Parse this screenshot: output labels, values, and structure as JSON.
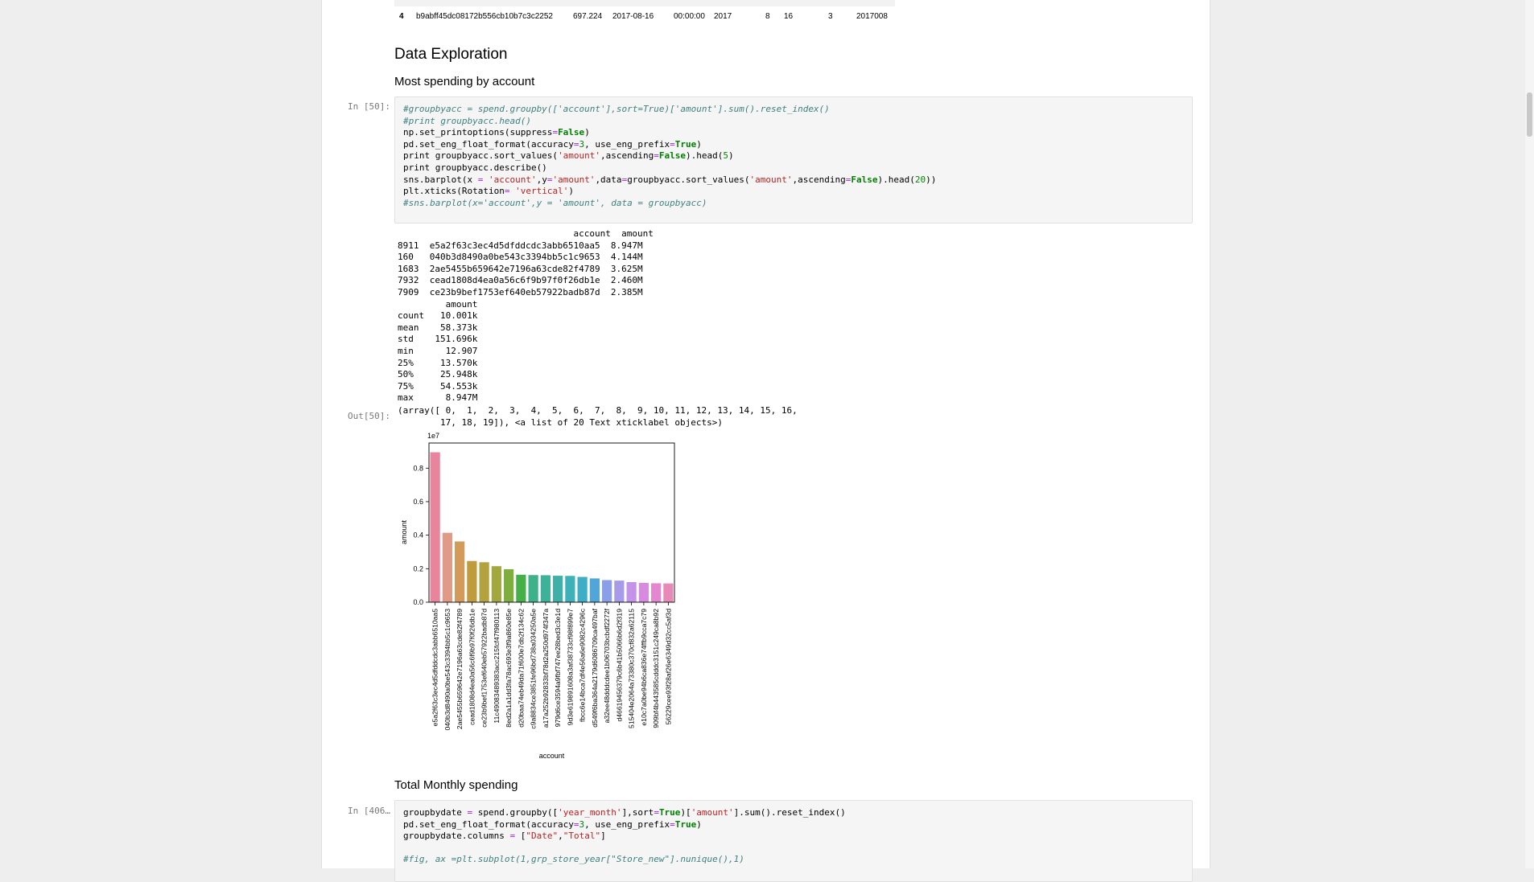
{
  "table_row": {
    "index": "4",
    "cells": [
      "b9abff45dc08172b556cb10b7c3c2252",
      "697.224",
      "2017-08-16",
      "00:00:00",
      "2017",
      "8",
      "16",
      "3",
      "2017008"
    ]
  },
  "headings": {
    "data_exploration": "Data Exploration",
    "most_spending": "Most spending by account",
    "total_monthly": "Total Monthly spending"
  },
  "cell1": {
    "in_prompt": "In [50]:",
    "out_prompt": "Out[50]:",
    "code": [
      {
        "parts": [
          {
            "t": "#groupbyacc = spend.groupby(['account'],sort=True)['amount'].sum().reset_index()",
            "c": "cm"
          }
        ]
      },
      {
        "parts": [
          {
            "t": "#print groupbyacc.head()",
            "c": "cm"
          }
        ]
      },
      {
        "parts": [
          {
            "t": "np.set_printoptions(suppress"
          },
          {
            "t": "=",
            "c": "op"
          },
          {
            "t": "False",
            "c": "kw"
          },
          {
            "t": ")"
          }
        ]
      },
      {
        "parts": [
          {
            "t": "pd.set_eng_float_format(accuracy"
          },
          {
            "t": "=",
            "c": "op"
          },
          {
            "t": "3",
            "c": "nu"
          },
          {
            "t": ", use_eng_prefix"
          },
          {
            "t": "=",
            "c": "op"
          },
          {
            "t": "True",
            "c": "kw"
          },
          {
            "t": ")"
          }
        ]
      },
      {
        "parts": [
          {
            "t": "print groupbyacc.sort_values("
          },
          {
            "t": "'amount'",
            "c": "st"
          },
          {
            "t": ",ascending"
          },
          {
            "t": "=",
            "c": "op"
          },
          {
            "t": "False",
            "c": "kw"
          },
          {
            "t": ").head("
          },
          {
            "t": "5",
            "c": "nu"
          },
          {
            "t": ")"
          }
        ]
      },
      {
        "parts": [
          {
            "t": "print groupbyacc.describe()"
          }
        ]
      },
      {
        "parts": [
          {
            "t": "sns.barplot(x "
          },
          {
            "t": "=",
            "c": "op"
          },
          {
            "t": " "
          },
          {
            "t": "'account'",
            "c": "st"
          },
          {
            "t": ",y"
          },
          {
            "t": "=",
            "c": "op"
          },
          {
            "t": "'amount'",
            "c": "st"
          },
          {
            "t": ",data"
          },
          {
            "t": "=",
            "c": "op"
          },
          {
            "t": "groupbyacc.sort_values("
          },
          {
            "t": "'amount'",
            "c": "st"
          },
          {
            "t": ",ascending"
          },
          {
            "t": "=",
            "c": "op"
          },
          {
            "t": "False",
            "c": "kw"
          },
          {
            "t": ").head("
          },
          {
            "t": "20",
            "c": "nu"
          },
          {
            "t": "))"
          }
        ]
      },
      {
        "parts": [
          {
            "t": "plt.xticks(Rotation"
          },
          {
            "t": "=",
            "c": "op"
          },
          {
            "t": " "
          },
          {
            "t": "'vertical'",
            "c": "st"
          },
          {
            "t": ")"
          }
        ]
      },
      {
        "parts": [
          {
            "t": "#sns.barplot(x='account',y = 'amount', data = groupbyacc)",
            "c": "cm"
          }
        ]
      }
    ],
    "stdout": [
      "                                 account  amount",
      "8911  e5a2f63c3ec4d5dfddcdc3abb6510aa5  8.947M",
      "160   040b3d8490a0be543c3394bb5c1c9653  4.144M",
      "1683  2ae5455b659642e7196a63cde82f4789  3.625M",
      "7932  cead1808d4ea0a56c6f9b97f0f26db1e  2.460M",
      "7909  ce23b9bef1753ef640eb57922badb87d  2.385M",
      "         amount",
      "count   10.001k",
      "mean    58.373k",
      "std    151.696k",
      "min      12.907",
      "25%     13.570k",
      "50%     25.948k",
      "75%     54.553k",
      "max      8.947M"
    ],
    "out_text": [
      "(array([ 0,  1,  2,  3,  4,  5,  6,  7,  8,  9, 10, 11, 12, 13, 14, 15, 16,",
      "        17, 18, 19]), <a list of 20 Text xticklabel objects>)"
    ]
  },
  "chart_data": {
    "type": "bar",
    "offset_label": "1e7",
    "xlabel": "account",
    "ylabel": "amount",
    "ylim": [
      0,
      0.95
    ],
    "yticks": [
      "0.0",
      "0.2",
      "0.4",
      "0.6",
      "0.8"
    ],
    "categories": [
      "e5a2f63c3ec4d5dfddcdc3abb6510aa5",
      "040b3d8490a0be543c3394bb5c1c9653",
      "2ae5455b659642e7196a63cde82f4789",
      "cead1808d4ea0a56c6f9b97f0f26db1e",
      "ce23b9bef1753ef640eb57922badb87d",
      "11c49083489383acc215fcf47f980113",
      "8ed2a1a1dd3fa78ac693e3f9a860e85e",
      "d20baa74eb49da71f600e7db2f134c62",
      "c9a8834ce3851fe96bd738a034250a5e",
      "a17a252b92833bf78d2a250d974f347a",
      "979d6ce3594a9fbf747ee28bed3c3e1d",
      "9d3e619891608a3af38733cf98f899e7",
      "fbcc6e14bca7df4e56a6e9082c4296c",
      "d549f6ba364a2179d6086709ca497baf",
      "a32ee48dddcdee1b06703bcbdf2272f",
      "d46619456379c6b41b5066b6d2f319",
      "515404e2064a73380c370cf832a62115",
      "e10c7a0be94b6ca836e74ffb9cca7c79",
      "909bf4b443585cdddc3151c249ca8b92",
      "56229cee93f28af26e6349d32cc5af3d"
    ],
    "values": [
      0.8947,
      0.4144,
      0.3625,
      0.246,
      0.2385,
      0.215,
      0.197,
      0.164,
      0.162,
      0.161,
      0.158,
      0.157,
      0.151,
      0.142,
      0.132,
      0.129,
      0.12,
      0.115,
      0.113,
      0.112
    ],
    "colors": [
      "#e8849c",
      "#e09a88",
      "#d49a5a",
      "#bf9b3e",
      "#b3a23e",
      "#a2a83e",
      "#7eae3e",
      "#45b047",
      "#3db18a",
      "#3eb19a",
      "#3eb0a8",
      "#3eb0b8",
      "#3eadc6",
      "#50a6d8",
      "#8a9fe8",
      "#a79ae8",
      "#c492e8",
      "#d889e0",
      "#e486d0",
      "#e78ab8"
    ]
  },
  "cell2": {
    "in_prompt": "In [406…",
    "code": [
      {
        "parts": [
          {
            "t": "groupbydate "
          },
          {
            "t": "=",
            "c": "op"
          },
          {
            "t": " spend.groupby(["
          },
          {
            "t": "'year_month'",
            "c": "st"
          },
          {
            "t": "],sort"
          },
          {
            "t": "=",
            "c": "op"
          },
          {
            "t": "True",
            "c": "kw"
          },
          {
            "t": ")["
          },
          {
            "t": "'amount'",
            "c": "st"
          },
          {
            "t": "].sum().reset_index()"
          }
        ]
      },
      {
        "parts": [
          {
            "t": "pd.set_eng_float_format(accuracy"
          },
          {
            "t": "=",
            "c": "op"
          },
          {
            "t": "3",
            "c": "nu"
          },
          {
            "t": ", use_eng_prefix"
          },
          {
            "t": "=",
            "c": "op"
          },
          {
            "t": "True",
            "c": "kw"
          },
          {
            "t": ")"
          }
        ]
      },
      {
        "parts": [
          {
            "t": "groupbydate.columns "
          },
          {
            "t": "=",
            "c": "op"
          },
          {
            "t": " ["
          },
          {
            "t": "\"Date\"",
            "c": "st"
          },
          {
            "t": ","
          },
          {
            "t": "\"Total\"",
            "c": "st"
          },
          {
            "t": "]"
          }
        ]
      },
      {
        "parts": [
          {
            "t": ""
          }
        ]
      },
      {
        "parts": [
          {
            "t": "#fig, ax =plt.subplot(1,grp_store_year[\"Store_new\"].nunique(),1)",
            "c": "cm"
          }
        ]
      }
    ]
  }
}
